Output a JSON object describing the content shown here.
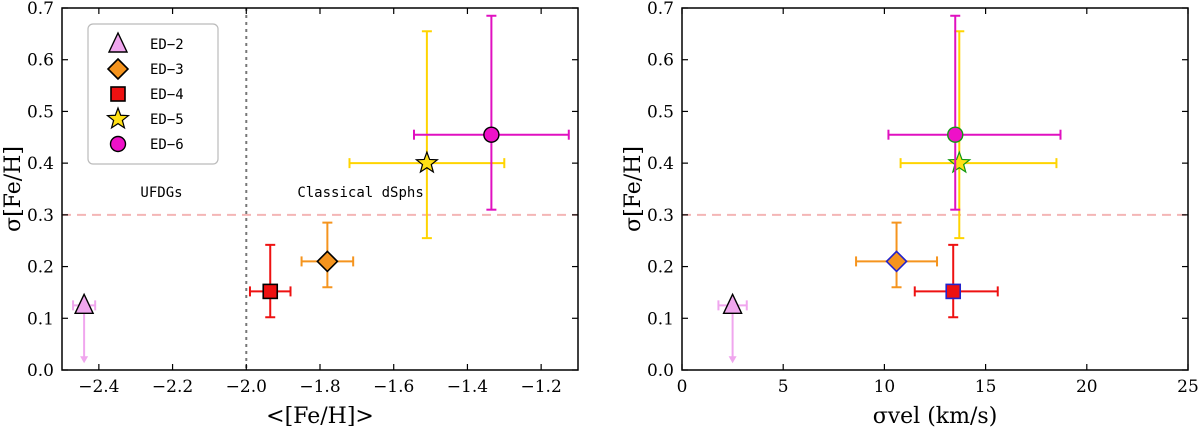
{
  "chart_data": [
    {
      "type": "scatter",
      "xlabel": "<[Fe/H]>",
      "ylabel": "σ[Fe/H]",
      "xlim": [
        -2.5,
        -1.1
      ],
      "ylim": [
        0.0,
        0.7
      ],
      "xticks": [
        -2.4,
        -2.2,
        -2.0,
        -1.8,
        -1.6,
        -1.4,
        -1.2
      ],
      "xtick_labels": [
        "−2.4",
        "−2.2",
        "−2.0",
        "−1.8",
        "−1.6",
        "−1.4",
        "−1.2"
      ],
      "yticks": [
        0.0,
        0.1,
        0.2,
        0.3,
        0.4,
        0.5,
        0.6,
        0.7
      ],
      "ytick_labels": [
        "0.0",
        "0.1",
        "0.2",
        "0.3",
        "0.4",
        "0.5",
        "0.6",
        "0.7"
      ],
      "hline": {
        "y": 0.3,
        "color": "#f4b6b6",
        "style": "dashed"
      },
      "vline": {
        "x": -2.0,
        "color": "#777777",
        "style": "dotted"
      },
      "annotations": [
        {
          "text": "UFDGs",
          "x": -2.23,
          "y": 0.335
        },
        {
          "text": "Classical dSphs",
          "x": -1.69,
          "y": 0.335
        }
      ],
      "legend": {
        "position": "top-left",
        "entries": [
          "ED−2",
          "ED−3",
          "ED−4",
          "ED−5",
          "ED−6"
        ]
      },
      "series": [
        {
          "name": "ED−2",
          "marker": "triangle",
          "color": "#f0a6ee",
          "edge": "#000000",
          "ecolor": "#f0a6ee",
          "x": -2.44,
          "y": 0.125,
          "xerr": [
            0.03,
            0.03
          ],
          "yerr": null,
          "upper_limit": true,
          "arrow_to": 0.015
        },
        {
          "name": "ED−3",
          "marker": "diamond",
          "color": "#f5941e",
          "edge": "#000000",
          "ecolor": "#f5941e",
          "x": -1.78,
          "y": 0.21,
          "xerr": [
            0.07,
            0.07
          ],
          "yerr": [
            0.05,
            0.075
          ]
        },
        {
          "name": "ED−4",
          "marker": "square",
          "color": "#ee1111",
          "edge": "#000000",
          "ecolor": "#ee1111",
          "x": -1.935,
          "y": 0.152,
          "xerr": [
            0.055,
            0.055
          ],
          "yerr": [
            0.05,
            0.09
          ]
        },
        {
          "name": "ED−5",
          "marker": "star",
          "color": "#ffe015",
          "edge": "#000000",
          "ecolor": "#ffd400",
          "x": -1.51,
          "y": 0.4,
          "xerr": [
            0.21,
            0.21
          ],
          "yerr": [
            0.145,
            0.255
          ]
        },
        {
          "name": "ED−6",
          "marker": "circle",
          "color": "#ee11c8",
          "edge": "#000000",
          "ecolor": "#e010c0",
          "x": -1.335,
          "y": 0.455,
          "xerr": [
            0.21,
            0.21
          ],
          "yerr": [
            0.145,
            0.23
          ]
        }
      ]
    },
    {
      "type": "scatter",
      "xlabel": "σvel (km/s)",
      "ylabel": "σ[Fe/H]",
      "xlim": [
        0,
        25
      ],
      "ylim": [
        0.0,
        0.7
      ],
      "xticks": [
        0,
        5,
        10,
        15,
        20,
        25
      ],
      "xtick_labels": [
        "0",
        "5",
        "10",
        "15",
        "20",
        "25"
      ],
      "yticks": [
        0.0,
        0.1,
        0.2,
        0.3,
        0.4,
        0.5,
        0.6,
        0.7
      ],
      "ytick_labels": [
        "0.0",
        "0.1",
        "0.2",
        "0.3",
        "0.4",
        "0.5",
        "0.6",
        "0.7"
      ],
      "hline": {
        "y": 0.3,
        "color": "#f4b6b6",
        "style": "dashed"
      },
      "series": [
        {
          "name": "ED−2",
          "marker": "triangle",
          "color": "#f0a6ee",
          "edge": "#000000",
          "ecolor": "#f0a6ee",
          "x": 2.5,
          "y": 0.125,
          "xerr": [
            0.7,
            0.7
          ],
          "yerr": null,
          "upper_limit": true,
          "arrow_to": 0.015
        },
        {
          "name": "ED−3",
          "marker": "diamond",
          "color": "#f5941e",
          "edge": "#2222cc",
          "ecolor": "#f5941e",
          "x": 10.6,
          "y": 0.21,
          "xerr": [
            2.0,
            2.0
          ],
          "yerr": [
            0.05,
            0.075
          ]
        },
        {
          "name": "ED−4",
          "marker": "square",
          "color": "#ee1111",
          "edge": "#2222cc",
          "ecolor": "#ee1111",
          "x": 13.4,
          "y": 0.152,
          "xerr": [
            1.9,
            2.2
          ],
          "yerr": [
            0.05,
            0.09
          ]
        },
        {
          "name": "ED−5",
          "marker": "star",
          "color": "#ffe015",
          "edge": "#119911",
          "ecolor": "#ffd400",
          "x": 13.7,
          "y": 0.4,
          "xerr": [
            2.9,
            4.8
          ],
          "yerr": [
            0.145,
            0.255
          ]
        },
        {
          "name": "ED−6",
          "marker": "circle",
          "color": "#ee11c8",
          "edge": "#119911",
          "ecolor": "#e010c0",
          "x": 13.5,
          "y": 0.455,
          "xerr": [
            3.3,
            5.2
          ],
          "yerr": [
            0.145,
            0.23
          ]
        }
      ]
    }
  ]
}
